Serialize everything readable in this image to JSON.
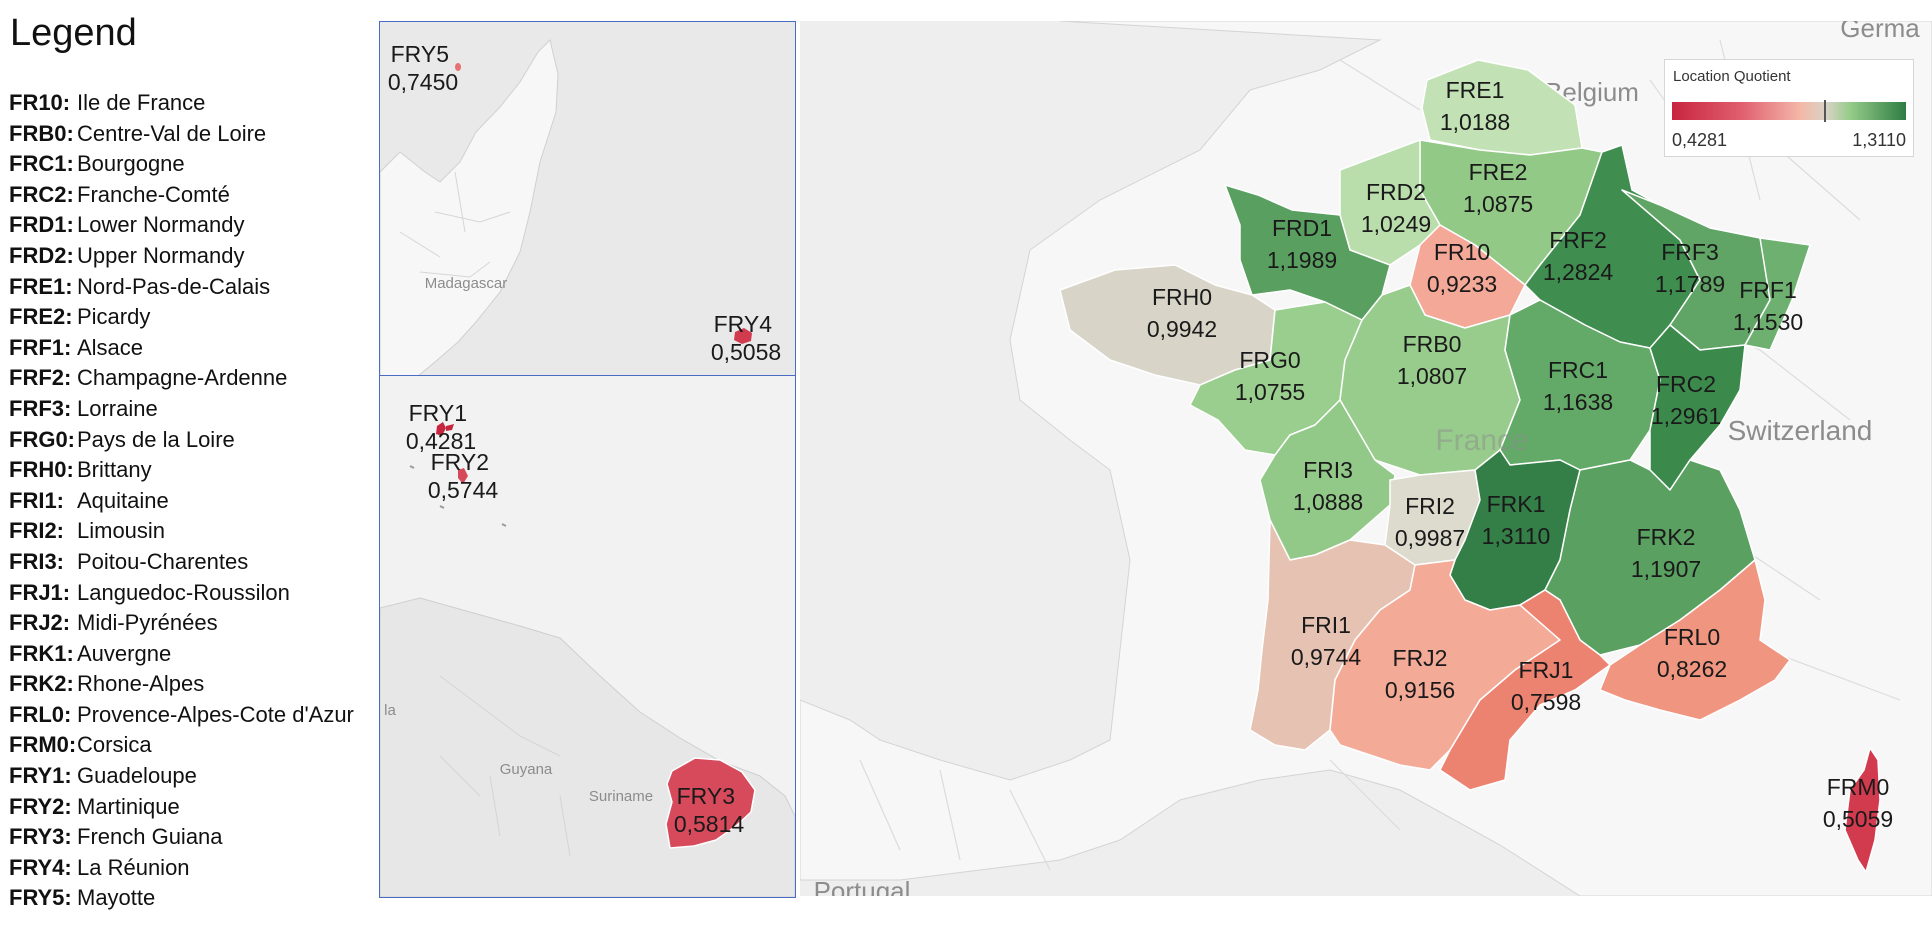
{
  "legend": {
    "title": "Legend",
    "items": [
      {
        "code": "FR10:",
        "name": "Ile de France"
      },
      {
        "code": "FRB0:",
        "name": "Centre-Val de Loire"
      },
      {
        "code": "FRC1:",
        "name": "Bourgogne"
      },
      {
        "code": "FRC2:",
        "name": "Franche-Comté"
      },
      {
        "code": "FRD1:",
        "name": "Lower Normandy"
      },
      {
        "code": "FRD2:",
        "name": "Upper Normandy"
      },
      {
        "code": "FRE1:",
        "name": "Nord-Pas-de-Calais"
      },
      {
        "code": "FRE2:",
        "name": "Picardy"
      },
      {
        "code": "FRF1:",
        "name": "Alsace"
      },
      {
        "code": "FRF2:",
        "name": "Champagne-Ardenne"
      },
      {
        "code": "FRF3:",
        "name": "Lorraine"
      },
      {
        "code": "FRG0:",
        "name": "Pays de la Loire"
      },
      {
        "code": "FRH0:",
        "name": "Brittany"
      },
      {
        "code": "FRI1:",
        "name": "Aquitaine"
      },
      {
        "code": "FRI2:",
        "name": "Limousin"
      },
      {
        "code": "FRI3:",
        "name": "Poitou-Charentes"
      },
      {
        "code": "FRJ1:",
        "name": "Languedoc-Roussilon"
      },
      {
        "code": "FRJ2:",
        "name": "Midi-Pyrénées"
      },
      {
        "code": "FRK1:",
        "name": "Auvergne"
      },
      {
        "code": "FRK2:",
        "name": "Rhone-Alpes"
      },
      {
        "code": "FRL0:",
        "name": "Provence-Alpes-Cote d'Azur"
      },
      {
        "code": "FRM0:",
        "name": "Corsica"
      },
      {
        "code": "FRY1:",
        "name": "Guadeloupe"
      },
      {
        "code": "FRY2:",
        "name": "Martinique"
      },
      {
        "code": "FRY3:",
        "name": "French Guiana"
      },
      {
        "code": "FRY4:",
        "name": "La Réunion"
      },
      {
        "code": "FRY5:",
        "name": "Mayotte"
      }
    ]
  },
  "color_scale": {
    "title": "Location Quotient",
    "min_label": "0,4281",
    "max_label": "1,3110",
    "min_color": "#c8253f",
    "mid_color": "#d8d3c6",
    "max_color": "#2e7d43"
  },
  "basemap_labels": {
    "belgium": "Belgium",
    "france": "France",
    "switzerland": "Switzerland",
    "germany": "Germa",
    "portugal": "Portugal",
    "madagascar": "Madagascar",
    "guyana": "Guyana",
    "suriname": "Suriname",
    "la": "la"
  },
  "regions": [
    {
      "code": "FR10",
      "value": "0,9233",
      "color": "#f4a898"
    },
    {
      "code": "FRB0",
      "value": "1,0807",
      "color": "#98cc8c"
    },
    {
      "code": "FRC1",
      "value": "1,1638",
      "color": "#63a968"
    },
    {
      "code": "FRC2",
      "value": "1,2961",
      "color": "#3b8a4c"
    },
    {
      "code": "FRD1",
      "value": "1,1989",
      "color": "#599f60"
    },
    {
      "code": "FRD2",
      "value": "1,0249",
      "color": "#b9ddab"
    },
    {
      "code": "FRE1",
      "value": "1,0188",
      "color": "#c2e2b5"
    },
    {
      "code": "FRE2",
      "value": "1,0875",
      "color": "#92c987"
    },
    {
      "code": "FRF1",
      "value": "1,1530",
      "color": "#6db070"
    },
    {
      "code": "FRF2",
      "value": "1,2824",
      "color": "#3f8d4f"
    },
    {
      "code": "FRF3",
      "value": "1,1789",
      "color": "#60a565"
    },
    {
      "code": "FRG0",
      "value": "1,0755",
      "color": "#9ace8e"
    },
    {
      "code": "FRH0",
      "value": "0,9942",
      "color": "#d8d5c8"
    },
    {
      "code": "FRI1",
      "value": "0,9744",
      "color": "#e6c2b2"
    },
    {
      "code": "FRI2",
      "value": "0,9987",
      "color": "#dcdbcd"
    },
    {
      "code": "FRI3",
      "value": "1,0888",
      "color": "#93c988"
    },
    {
      "code": "FRJ1",
      "value": "0,7598",
      "color": "#ec8270"
    },
    {
      "code": "FRJ2",
      "value": "0,9156",
      "color": "#f3ab98"
    },
    {
      "code": "FRK1",
      "value": "1,3110",
      "color": "#347f47"
    },
    {
      "code": "FRK2",
      "value": "1,1907",
      "color": "#59a061"
    },
    {
      "code": "FRL0",
      "value": "0,8262",
      "color": "#ef9580"
    },
    {
      "code": "FRM0",
      "value": "0,5059",
      "color": "#d23a4e"
    },
    {
      "code": "FRY1",
      "value": "0,4281",
      "color": "#c8253f"
    },
    {
      "code": "FRY2",
      "value": "0,5744",
      "color": "#d6495a"
    },
    {
      "code": "FRY3",
      "value": "0,5814",
      "color": "#d64a5b"
    },
    {
      "code": "FRY4",
      "value": "0,5058",
      "color": "#d23a4e"
    },
    {
      "code": "FRY5",
      "value": "0,7450",
      "color": "#e57272"
    }
  ]
}
